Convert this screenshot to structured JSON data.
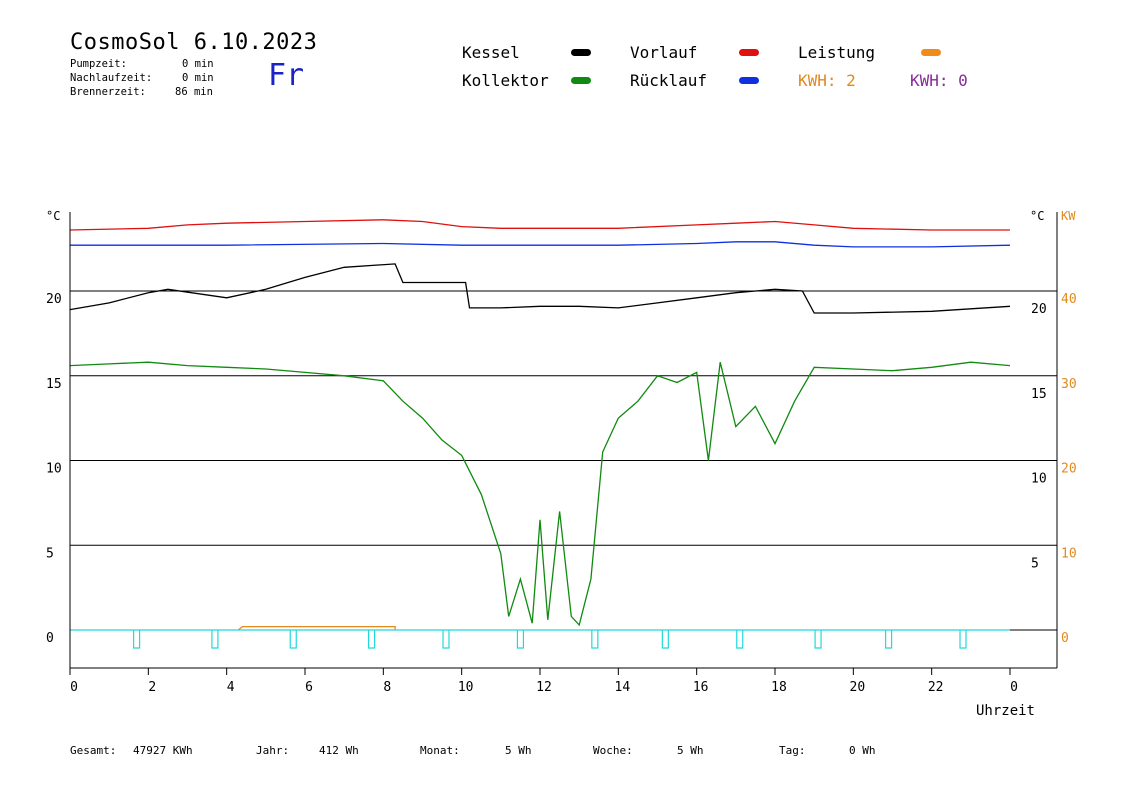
{
  "header": {
    "title": "CosmoSol 6.10.2023",
    "day": "Fr",
    "stats": [
      {
        "label": "Pumpzeit:",
        "value": "0 min"
      },
      {
        "label": "Nachlaufzeit:",
        "value": "0 min"
      },
      {
        "label": "Brennerzeit:",
        "value": "86 min"
      }
    ]
  },
  "legend": {
    "items": [
      {
        "label": "Kessel",
        "color": "#000000"
      },
      {
        "label": "Vorlauf",
        "color": "#e01010"
      },
      {
        "label": "Leistung",
        "color": "#f08a1a"
      },
      {
        "label": "Kollektor",
        "color": "#108a10"
      },
      {
        "label": "Rücklauf",
        "color": "#1030e0"
      }
    ],
    "kwh_orange": "KWH: 2",
    "kwh_purple": "KWH: 0",
    "kwh_orange_color": "#e08a20",
    "kwh_purple_color": "#8a2a9a"
  },
  "chart_data": {
    "type": "line",
    "xlabel": "Uhrzeit",
    "x_ticks": [
      "0",
      "2",
      "4",
      "6",
      "8",
      "10",
      "12",
      "14",
      "16",
      "18",
      "20",
      "22",
      "0"
    ],
    "xlim": [
      0,
      24
    ],
    "y_left": {
      "unit": "°C",
      "ticks": [
        "0",
        "5",
        "10",
        "15",
        "20"
      ],
      "range": [
        -2,
        25
      ]
    },
    "y_mid": {
      "unit": "°C",
      "ticks": [
        "5",
        "10",
        "15",
        "20"
      ]
    },
    "y_right": {
      "unit": "KW",
      "ticks": [
        "0",
        "10",
        "20",
        "30",
        "40"
      ],
      "range": [
        -4,
        50
      ]
    },
    "grid": true,
    "series": [
      {
        "name": "Vorlauf",
        "color": "#e01010",
        "x": [
          0,
          2,
          3,
          4,
          6,
          8,
          9,
          10,
          11,
          14,
          16,
          17,
          18,
          19,
          20,
          22,
          24
        ],
        "y": [
          23.6,
          23.7,
          23.9,
          24.0,
          24.1,
          24.2,
          24.1,
          23.8,
          23.7,
          23.7,
          23.9,
          24.0,
          24.1,
          23.9,
          23.7,
          23.6,
          23.6
        ]
      },
      {
        "name": "Rücklauf",
        "color": "#1030e0",
        "x": [
          0,
          4,
          8,
          10,
          12,
          14,
          16,
          17,
          18,
          19,
          20,
          22,
          24
        ],
        "y": [
          22.7,
          22.7,
          22.8,
          22.7,
          22.7,
          22.7,
          22.8,
          22.9,
          22.9,
          22.7,
          22.6,
          22.6,
          22.7
        ]
      },
      {
        "name": "Kessel",
        "color": "#000000",
        "x": [
          0,
          1,
          2,
          2.5,
          4,
          5,
          6,
          7,
          8.3,
          8.5,
          10.1,
          10.2,
          11,
          12,
          13,
          14,
          15,
          16,
          17,
          18,
          18.7,
          19,
          20,
          22,
          24
        ],
        "y": [
          18.9,
          19.3,
          19.9,
          20.1,
          19.6,
          20.1,
          20.8,
          21.4,
          21.6,
          20.5,
          20.5,
          19.0,
          19.0,
          19.1,
          19.1,
          19.0,
          19.3,
          19.6,
          19.9,
          20.1,
          20.0,
          18.7,
          18.7,
          18.8,
          19.1
        ]
      },
      {
        "name": "Kollektor",
        "color": "#108a10",
        "x": [
          0,
          1,
          2,
          3,
          4,
          5,
          6,
          7,
          8,
          8.5,
          9,
          9.5,
          10,
          10.5,
          11,
          11.2,
          11.5,
          11.8,
          12,
          12.2,
          12.5,
          12.8,
          13,
          13.3,
          13.6,
          14,
          14.5,
          15,
          15.5,
          16,
          16.3,
          16.6,
          17,
          17.5,
          18,
          18.5,
          19,
          20,
          21,
          22,
          23,
          24
        ],
        "y": [
          15.6,
          15.7,
          15.8,
          15.6,
          15.5,
          15.4,
          15.2,
          15.0,
          14.7,
          13.5,
          12.5,
          11.2,
          10.3,
          8.0,
          4.5,
          0.8,
          3.0,
          0.4,
          6.5,
          0.6,
          7.0,
          0.8,
          0.3,
          3.0,
          10.5,
          12.5,
          13.5,
          15.0,
          14.6,
          15.2,
          10.0,
          15.8,
          12.0,
          13.2,
          11.0,
          13.5,
          15.5,
          15.4,
          15.3,
          15.5,
          15.8,
          15.6
        ]
      },
      {
        "name": "Leistung",
        "color": "#e08a20",
        "x": [
          4.3,
          4.4,
          8.3,
          8.3
        ],
        "y": [
          0,
          0.2,
          0.2,
          0
        ]
      }
    ],
    "pump_pulses_x": [
      1.7,
      3.7,
      5.7,
      7.7,
      9.6,
      11.5,
      13.4,
      15.2,
      17.1,
      19.1,
      20.9,
      22.8
    ],
    "pump_color": "#22d8d8"
  },
  "footer": {
    "items": [
      {
        "label": "Gesamt:",
        "value": "47927 KWh"
      },
      {
        "label": "Jahr:",
        "value": "412 Wh"
      },
      {
        "label": "Monat:",
        "value": "5 Wh"
      },
      {
        "label": "Woche:",
        "value": "5 Wh"
      },
      {
        "label": "Tag:",
        "value": "0 Wh"
      }
    ]
  }
}
